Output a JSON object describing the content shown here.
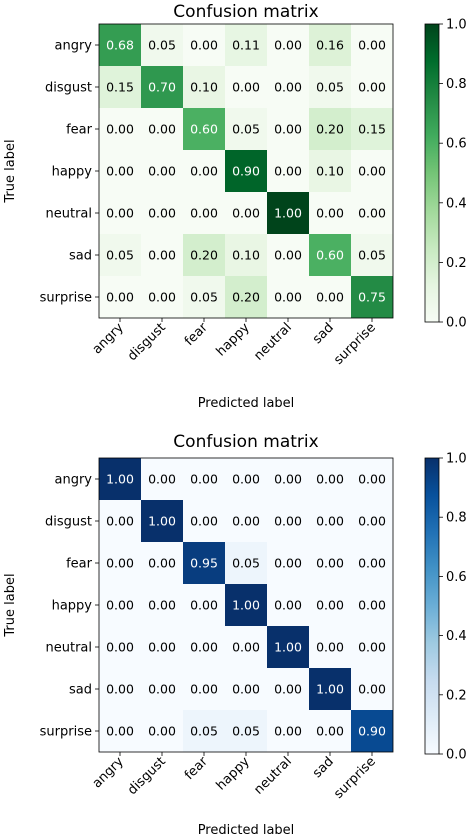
{
  "chart_data": [
    {
      "type": "heatmap",
      "title": "Confusion matrix",
      "xlabel": "Predicted label",
      "ylabel": "True label",
      "colormap": "Greens",
      "row_labels": [
        "angry",
        "disgust",
        "fear",
        "happy",
        "neutral",
        "sad",
        "surprise"
      ],
      "col_labels": [
        "angry",
        "disgust",
        "fear",
        "happy",
        "neutral",
        "sad",
        "surprise"
      ],
      "values": [
        [
          0.68,
          0.05,
          0.0,
          0.11,
          0.0,
          0.16,
          0.0
        ],
        [
          0.15,
          0.7,
          0.1,
          0.0,
          0.0,
          0.05,
          0.0
        ],
        [
          0.0,
          0.0,
          0.6,
          0.05,
          0.0,
          0.2,
          0.15
        ],
        [
          0.0,
          0.0,
          0.0,
          0.9,
          0.0,
          0.1,
          0.0
        ],
        [
          0.0,
          0.0,
          0.0,
          0.0,
          1.0,
          0.0,
          0.0
        ],
        [
          0.05,
          0.0,
          0.2,
          0.1,
          0.0,
          0.6,
          0.05
        ],
        [
          0.0,
          0.0,
          0.05,
          0.2,
          0.0,
          0.0,
          0.75
        ]
      ],
      "colorbar_range": [
        0,
        1
      ],
      "colorbar_ticks": [
        "0.0",
        "0.2",
        "0.4",
        "0.6",
        "0.8",
        "1.0"
      ]
    },
    {
      "type": "heatmap",
      "title": "Confusion matrix",
      "xlabel": "Predicted label",
      "ylabel": "True label",
      "colormap": "Blues",
      "row_labels": [
        "angry",
        "disgust",
        "fear",
        "happy",
        "neutral",
        "sad",
        "surprise"
      ],
      "col_labels": [
        "angry",
        "disgust",
        "fear",
        "happy",
        "neutral",
        "sad",
        "surprise"
      ],
      "values": [
        [
          1.0,
          0.0,
          0.0,
          0.0,
          0.0,
          0.0,
          0.0
        ],
        [
          0.0,
          1.0,
          0.0,
          0.0,
          0.0,
          0.0,
          0.0
        ],
        [
          0.0,
          0.0,
          0.95,
          0.05,
          0.0,
          0.0,
          0.0
        ],
        [
          0.0,
          0.0,
          0.0,
          1.0,
          0.0,
          0.0,
          0.0
        ],
        [
          0.0,
          0.0,
          0.0,
          0.0,
          1.0,
          0.0,
          0.0
        ],
        [
          0.0,
          0.0,
          0.0,
          0.0,
          0.0,
          1.0,
          0.0
        ],
        [
          0.0,
          0.0,
          0.05,
          0.05,
          0.0,
          0.0,
          0.9
        ]
      ],
      "colorbar_range": [
        0,
        1
      ],
      "colorbar_ticks": [
        "0.0",
        "0.2",
        "0.4",
        "0.6",
        "0.8",
        "1.0"
      ]
    }
  ]
}
